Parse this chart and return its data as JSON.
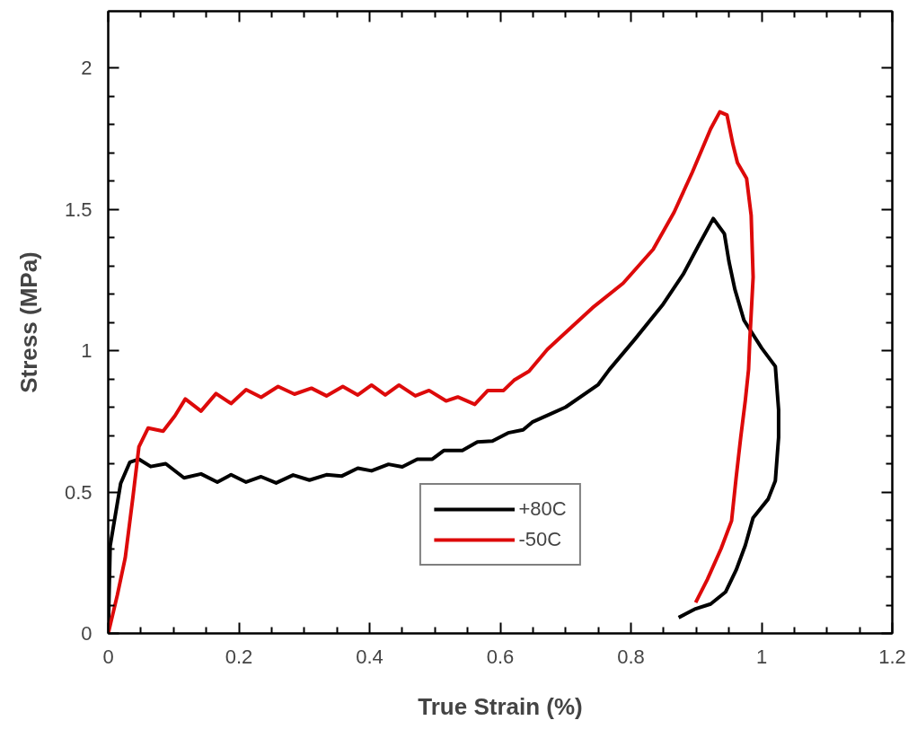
{
  "chart_data": {
    "type": "line",
    "xlabel": "True Strain (%)",
    "ylabel": "Stress (MPa)",
    "xlim": [
      0,
      1.2
    ],
    "ylim": [
      0,
      2.2
    ],
    "xticks": [
      0,
      0.2,
      0.4,
      0.6,
      0.8,
      1,
      1.2
    ],
    "yticks": [
      0,
      0.5,
      1,
      1.5,
      2
    ],
    "grid": false,
    "legend": "bottom",
    "marker": "none",
    "line_style": "solid",
    "series": [
      {
        "name": "+80C",
        "color": "#000000",
        "x": [
          0,
          0.003,
          0.019,
          0.033,
          0.047,
          0.065,
          0.088,
          0.116,
          0.142,
          0.167,
          0.188,
          0.211,
          0.234,
          0.257,
          0.283,
          0.308,
          0.334,
          0.357,
          0.382,
          0.403,
          0.429,
          0.45,
          0.473,
          0.496,
          0.514,
          0.542,
          0.565,
          0.588,
          0.612,
          0.635,
          0.649,
          0.676,
          0.7,
          0.75,
          0.767,
          0.806,
          0.848,
          0.88,
          0.903,
          0.926,
          0.943,
          0.95,
          0.959,
          0.973,
          1.0,
          1.021,
          1.026,
          1.026,
          1.021,
          1.01,
          0.987,
          0.975,
          0.961,
          0.945,
          0.922,
          0.899,
          0.873
        ],
        "values": [
          0,
          0.31,
          0.53,
          0.605,
          0.616,
          0.59,
          0.6,
          0.55,
          0.564,
          0.535,
          0.561,
          0.535,
          0.554,
          0.532,
          0.56,
          0.542,
          0.561,
          0.556,
          0.584,
          0.575,
          0.598,
          0.589,
          0.616,
          0.616,
          0.647,
          0.647,
          0.677,
          0.68,
          0.709,
          0.72,
          0.747,
          0.775,
          0.8,
          0.88,
          0.933,
          1.04,
          1.16,
          1.27,
          1.37,
          1.467,
          1.413,
          1.315,
          1.217,
          1.107,
          1.009,
          0.944,
          0.791,
          0.693,
          0.54,
          0.475,
          0.409,
          0.311,
          0.224,
          0.147,
          0.104,
          0.087,
          0.056
        ]
      },
      {
        "name": "-50C",
        "color": "#dd0a0a",
        "x": [
          0,
          0.014,
          0.026,
          0.038,
          0.047,
          0.061,
          0.084,
          0.102,
          0.118,
          0.142,
          0.165,
          0.188,
          0.211,
          0.234,
          0.26,
          0.285,
          0.311,
          0.334,
          0.359,
          0.382,
          0.403,
          0.424,
          0.445,
          0.47,
          0.491,
          0.517,
          0.535,
          0.561,
          0.581,
          0.605,
          0.621,
          0.644,
          0.672,
          0.695,
          0.741,
          0.788,
          0.834,
          0.866,
          0.894,
          0.922,
          0.936,
          0.947,
          0.956,
          0.963,
          0.977,
          0.984,
          0.987,
          0.982,
          0.98,
          0.975,
          0.968,
          0.961,
          0.954,
          0.938,
          0.917,
          0.899
        ],
        "values": [
          0,
          0.136,
          0.267,
          0.486,
          0.66,
          0.726,
          0.715,
          0.769,
          0.829,
          0.786,
          0.848,
          0.813,
          0.862,
          0.835,
          0.873,
          0.846,
          0.867,
          0.84,
          0.873,
          0.843,
          0.878,
          0.843,
          0.878,
          0.84,
          0.859,
          0.822,
          0.836,
          0.81,
          0.859,
          0.859,
          0.895,
          0.927,
          1.004,
          1.053,
          1.151,
          1.238,
          1.358,
          1.489,
          1.631,
          1.784,
          1.844,
          1.833,
          1.73,
          1.664,
          1.609,
          1.478,
          1.26,
          1.042,
          0.933,
          0.823,
          0.693,
          0.551,
          0.398,
          0.3,
          0.191,
          0.109
        ]
      }
    ]
  }
}
